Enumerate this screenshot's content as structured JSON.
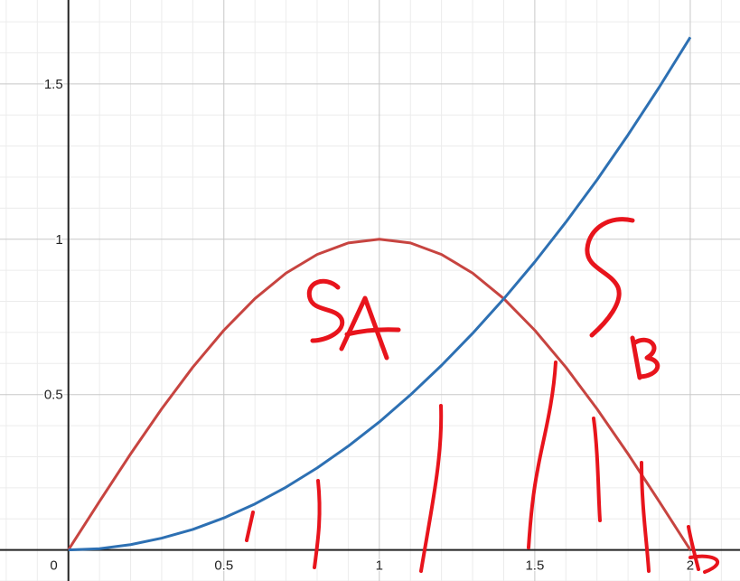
{
  "chart_data": {
    "type": "line",
    "xlim": [
      -0.22,
      2.16
    ],
    "ylim": [
      -0.1,
      1.77
    ],
    "grid": true,
    "minor_grid": true,
    "x_ticks": [
      {
        "value": 0.5,
        "label": "0.5"
      },
      {
        "value": 1,
        "label": "1"
      },
      {
        "value": 1.5,
        "label": "1.5"
      },
      {
        "value": 2,
        "label": "2"
      }
    ],
    "y_ticks": [
      {
        "value": 0.5,
        "label": "0.5"
      },
      {
        "value": 1,
        "label": "1"
      },
      {
        "value": 1.5,
        "label": "1.5"
      }
    ],
    "origin_label": "0",
    "series": [
      {
        "color": "#c74440",
        "x": [
          0,
          0.1,
          0.2,
          0.3,
          0.4,
          0.5,
          0.6,
          0.7,
          0.8,
          0.9,
          1.0,
          1.1,
          1.2,
          1.3,
          1.4,
          1.5,
          1.6,
          1.7,
          1.8,
          1.9,
          2.0
        ],
        "y": [
          0,
          0.156,
          0.309,
          0.454,
          0.588,
          0.707,
          0.809,
          0.891,
          0.951,
          0.988,
          1.0,
          0.988,
          0.951,
          0.891,
          0.809,
          0.707,
          0.588,
          0.454,
          0.309,
          0.156,
          0
        ]
      },
      {
        "color": "#2d70b3",
        "x": [
          0,
          0.1,
          0.2,
          0.3,
          0.4,
          0.5,
          0.6,
          0.7,
          0.8,
          0.9,
          1.0,
          1.1,
          1.2,
          1.3,
          1.4,
          1.5,
          1.6,
          1.7,
          1.8,
          1.9,
          2.0
        ],
        "y": [
          0,
          0.004,
          0.017,
          0.038,
          0.066,
          0.103,
          0.148,
          0.202,
          0.264,
          0.334,
          0.412,
          0.499,
          0.594,
          0.697,
          0.808,
          0.927,
          1.055,
          1.191,
          1.336,
          1.489,
          1.65
        ]
      }
    ],
    "annotations": [
      {
        "text": "SA",
        "color": "#e8141c"
      },
      {
        "text": "SB",
        "color": "#e8141c"
      }
    ]
  }
}
